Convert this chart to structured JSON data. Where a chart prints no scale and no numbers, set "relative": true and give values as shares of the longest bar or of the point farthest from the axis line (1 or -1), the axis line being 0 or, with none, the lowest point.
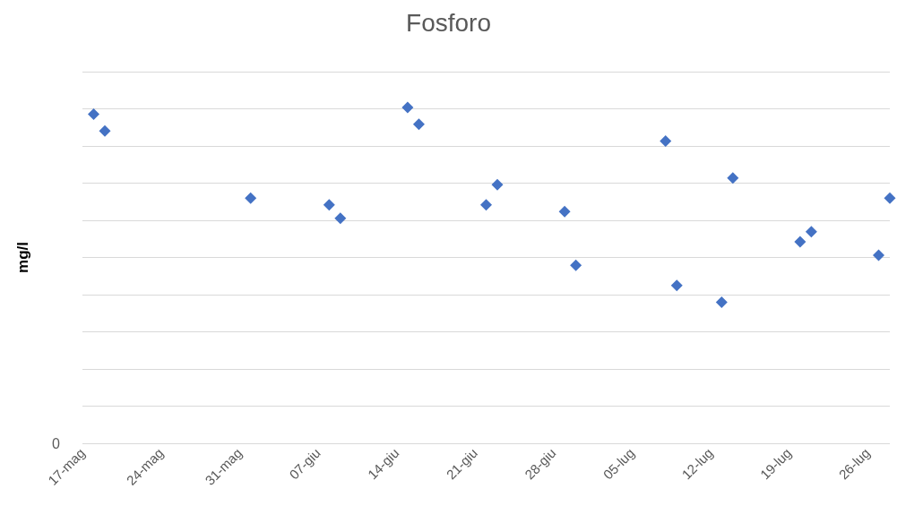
{
  "chart_data": {
    "type": "scatter",
    "title": "Fosforo",
    "ylabel": "mg/l",
    "relative": true,
    "grid": "y",
    "marker": "diamond",
    "annotations": [
      "0"
    ],
    "x": [
      "--05-18",
      "--05-19",
      "--06-01",
      "--06-08",
      "--06-09",
      "--06-15",
      "--06-16",
      "--06-22",
      "--06-23",
      "--06-29",
      "--06-30",
      "--07-08",
      "--07-09",
      "--07-13",
      "--07-14",
      "--07-20",
      "--07-21",
      "--07-27",
      "--07-28"
    ],
    "series": [
      {
        "color": "#4472c4",
        "values": [
          0.98,
          0.93,
          0.73,
          0.71,
          0.67,
          1,
          0.95,
          0.71,
          0.77,
          0.69,
          0.53,
          0.9,
          0.47,
          0.42,
          0.79,
          0.6,
          0.63,
          0.56,
          0.73
        ]
      }
    ],
    "xlim": [
      "--05-17",
      "--07-28"
    ],
    "xticks": [
      {
        "value": "--05-17",
        "label": "17-mag"
      },
      {
        "value": "--05-24",
        "label": "24-mag"
      },
      {
        "value": "--05-31",
        "label": "31-mag"
      },
      {
        "value": "--06-07",
        "label": "07-giu"
      },
      {
        "value": "--06-14",
        "label": "14-giu"
      },
      {
        "value": "--06-21",
        "label": "21-giu"
      },
      {
        "value": "--06-28",
        "label": "28-giu"
      },
      {
        "value": "--07-05",
        "label": "05-lug"
      },
      {
        "value": "--07-12",
        "label": "12-lug"
      },
      {
        "value": "--07-19",
        "label": "19-lug"
      },
      {
        "value": "--07-26",
        "label": "26-lug"
      }
    ]
  }
}
